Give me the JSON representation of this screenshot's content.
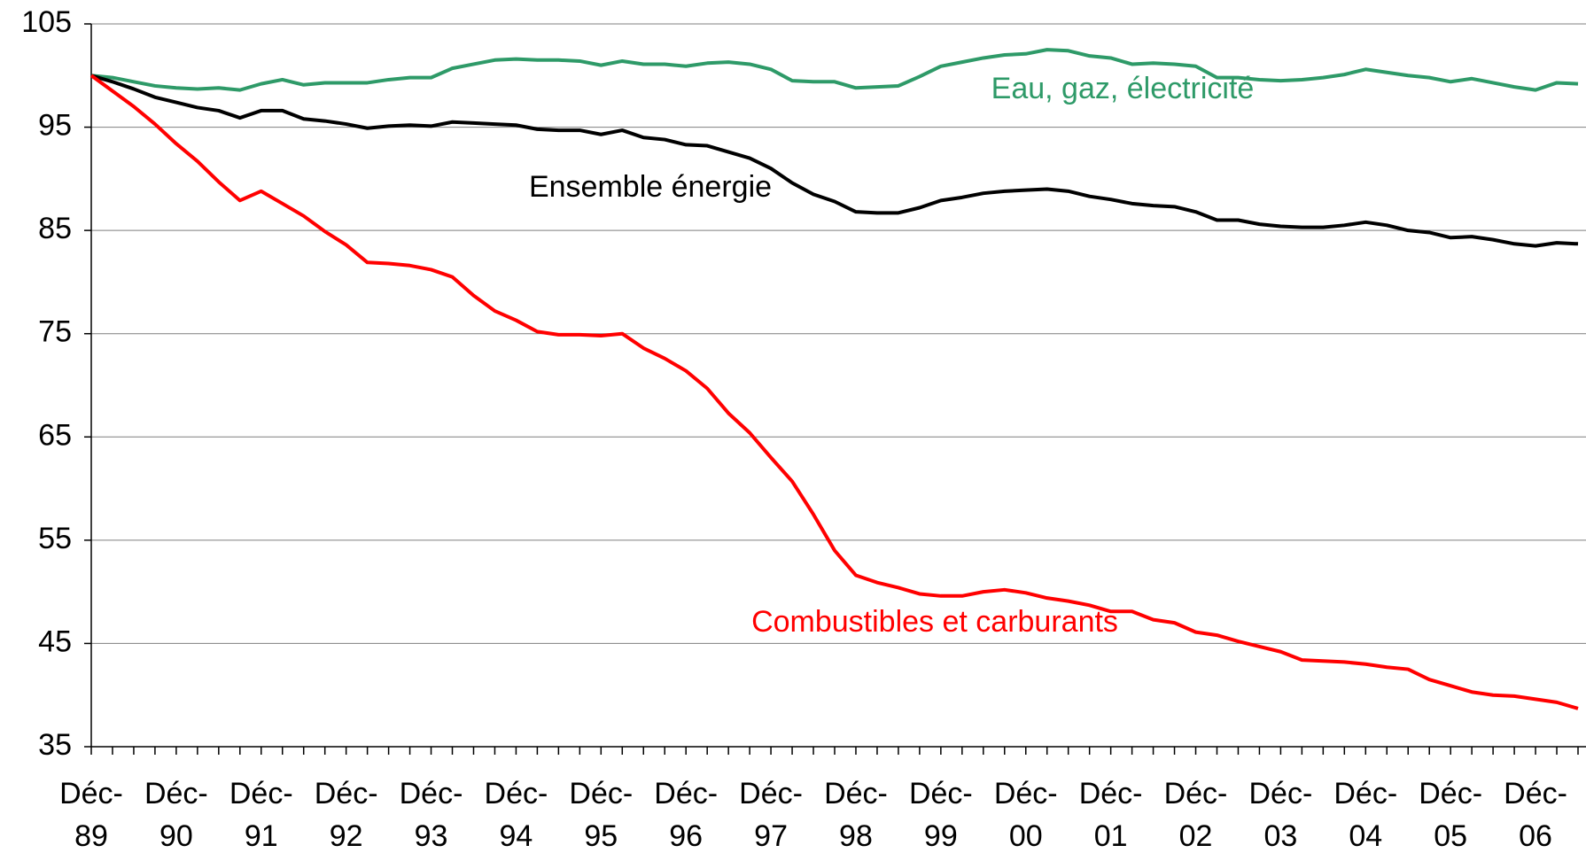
{
  "chart_data": {
    "type": "line",
    "categories": [
      "Déc-89",
      null,
      null,
      null,
      "Déc-90",
      null,
      null,
      null,
      "Déc-91",
      null,
      null,
      null,
      "Déc-92",
      null,
      null,
      null,
      "Déc-93",
      null,
      null,
      null,
      "Déc-94",
      null,
      null,
      null,
      "Déc-95",
      null,
      null,
      null,
      "Déc-96",
      null,
      null,
      null,
      "Déc-97",
      null,
      null,
      null,
      "Déc-98",
      null,
      null,
      null,
      "Déc-99",
      null,
      null,
      null,
      "Déc-00",
      null,
      null,
      null,
      "Déc-01",
      null,
      null,
      null,
      "Déc-02",
      null,
      null,
      null,
      "Déc-03",
      null,
      null,
      null,
      "Déc-04",
      null,
      null,
      null,
      "Déc-05",
      null,
      null,
      null,
      "Déc-06",
      null,
      null
    ],
    "series": [
      {
        "name": "Eau, gaz, électricité",
        "color": "#2e9a68",
        "values": [
          100,
          99.8,
          99.4,
          99.0,
          98.8,
          98.7,
          98.8,
          98.6,
          99.2,
          99.6,
          99.1,
          99.3,
          99.3,
          99.3,
          99.6,
          99.8,
          99.8,
          100.7,
          101.1,
          101.5,
          101.6,
          101.5,
          101.5,
          101.4,
          101.0,
          101.4,
          101.1,
          101.1,
          100.9,
          101.2,
          101.3,
          101.1,
          100.6,
          99.5,
          99.4,
          99.4,
          98.8,
          98.9,
          99.0,
          99.9,
          100.9,
          101.3,
          101.7,
          102.0,
          102.1,
          102.5,
          102.4,
          101.9,
          101.7,
          101.1,
          101.2,
          101.1,
          100.9,
          99.8,
          99.8,
          99.6,
          99.5,
          99.6,
          99.8,
          100.1,
          100.6,
          100.3,
          100.0,
          99.8,
          99.4,
          99.7,
          99.3,
          98.9,
          98.6,
          99.3,
          99.2
        ]
      },
      {
        "name": "Ensemble énergie",
        "color": "#000000",
        "values": [
          100,
          99.4,
          98.7,
          97.9,
          97.4,
          96.9,
          96.6,
          95.9,
          96.6,
          96.6,
          95.8,
          95.6,
          95.3,
          94.9,
          95.1,
          95.2,
          95.1,
          95.5,
          95.4,
          95.3,
          95.2,
          94.8,
          94.7,
          94.7,
          94.3,
          94.7,
          94.0,
          93.8,
          93.3,
          93.2,
          92.6,
          92.0,
          91.0,
          89.6,
          88.5,
          87.8,
          86.8,
          86.7,
          86.7,
          87.2,
          87.9,
          88.2,
          88.6,
          88.8,
          88.9,
          89.0,
          88.8,
          88.3,
          88.0,
          87.6,
          87.4,
          87.3,
          86.8,
          86.0,
          86.0,
          85.6,
          85.4,
          85.3,
          85.3,
          85.5,
          85.8,
          85.5,
          85.0,
          84.8,
          84.3,
          84.4,
          84.1,
          83.7,
          83.5,
          83.8,
          83.7
        ]
      },
      {
        "name": "Combustibles et carburants",
        "color": "#ff0000",
        "values": [
          100,
          98.5,
          97.0,
          95.3,
          93.4,
          91.7,
          89.7,
          87.9,
          88.8,
          87.6,
          86.4,
          84.9,
          83.6,
          81.9,
          81.8,
          81.6,
          81.2,
          80.5,
          78.7,
          77.2,
          76.3,
          75.2,
          74.9,
          74.9,
          74.8,
          75.0,
          73.6,
          72.6,
          71.4,
          69.7,
          67.3,
          65.4,
          63.0,
          60.7,
          57.5,
          54.0,
          51.6,
          50.9,
          50.4,
          49.8,
          49.6,
          49.6,
          50.0,
          50.2,
          49.9,
          49.4,
          49.1,
          48.7,
          48.1,
          48.1,
          47.3,
          47.0,
          46.1,
          45.8,
          45.2,
          44.7,
          44.2,
          43.4,
          43.3,
          43.2,
          43.0,
          42.7,
          42.5,
          41.5,
          40.9,
          40.3,
          40.0,
          39.9,
          39.6,
          39.3,
          38.7
        ]
      }
    ],
    "ylim": [
      35,
      105
    ],
    "yticks": [
      35,
      45,
      55,
      65,
      75,
      85,
      95,
      105
    ],
    "grid": true
  }
}
